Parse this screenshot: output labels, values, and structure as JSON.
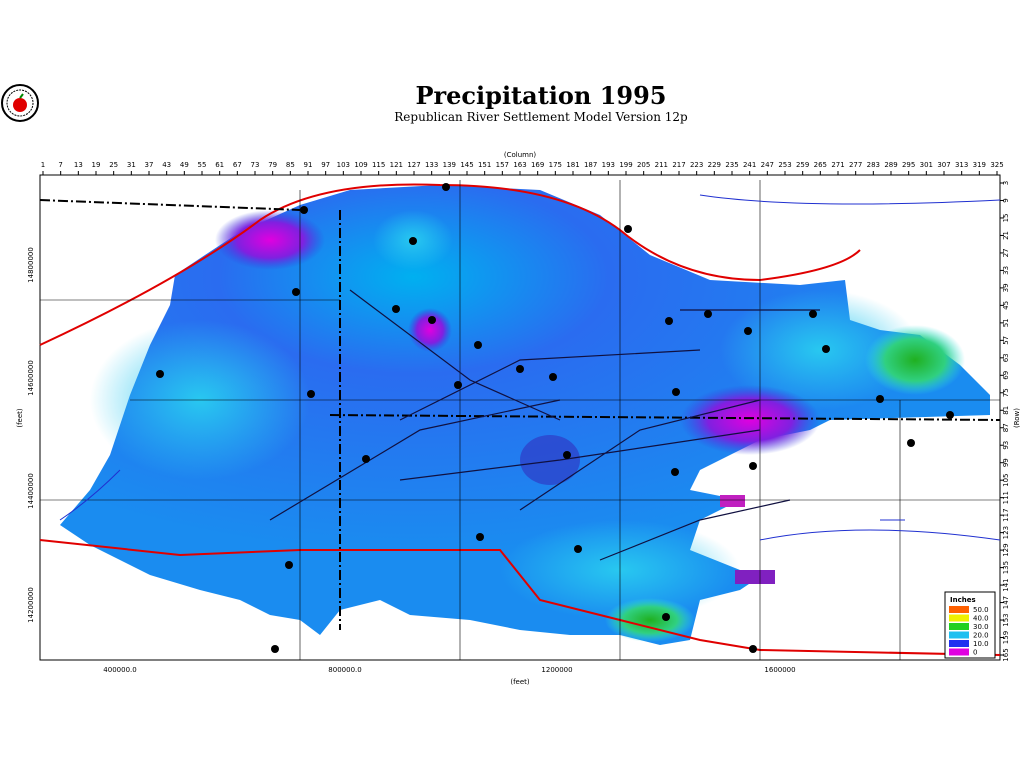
{
  "header": {
    "title": "Precipitation 1995",
    "subtitle": "Republican River Settlement Model Version 12p"
  },
  "top_axis": {
    "label": "(Column)",
    "ticks": [
      1,
      7,
      13,
      19,
      25,
      31,
      37,
      43,
      49,
      55,
      61,
      67,
      73,
      79,
      85,
      91,
      97,
      103,
      109,
      115,
      121,
      127,
      133,
      139,
      145,
      151,
      157,
      163,
      169,
      175,
      181,
      187,
      193,
      199,
      205,
      211,
      217,
      223,
      229,
      235,
      241,
      247,
      253,
      259,
      265,
      271,
      277,
      283,
      289,
      295,
      301,
      307,
      313,
      319,
      325
    ]
  },
  "right_axis": {
    "label": "(Row)",
    "ticks": [
      3,
      9,
      15,
      21,
      27,
      33,
      39,
      45,
      51,
      57,
      63,
      69,
      75,
      81,
      87,
      93,
      99,
      105,
      111,
      117,
      123,
      129,
      135,
      141,
      147,
      153,
      159,
      165
    ]
  },
  "left_axis": {
    "label": "(feet)",
    "ticks": [
      "14800000",
      "14600000",
      "14400000",
      "14200000"
    ]
  },
  "bottom_axis": {
    "label": "(feet)",
    "ticks": [
      "400000.0",
      "800000.0",
      "1200000",
      "1600000"
    ]
  },
  "legend": {
    "title": "Inches",
    "entries": [
      "50.0",
      "40.0",
      "30.0",
      "20.0",
      "10.0",
      "0"
    ]
  }
}
